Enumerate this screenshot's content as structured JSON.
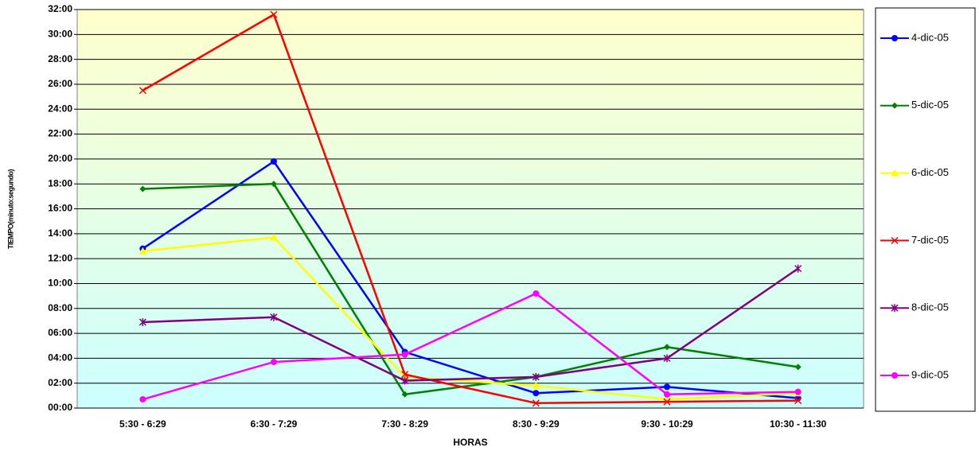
{
  "chart_data": {
    "type": "line",
    "x_label": "HORAS",
    "y_label": "TIEMPO(minuto:segundo)",
    "categories": [
      "5:30 - 6:29",
      "6:30 - 7:29",
      "7:30 - 8:29",
      "8:30 - 9:29",
      "9:30 - 10:29",
      "10:30 - 11:30"
    ],
    "series": [
      {
        "name": "4-dic-05",
        "color": "#0000ff",
        "marker": "circle",
        "values": [
          12.8,
          19.8,
          4.5,
          1.2,
          1.7,
          0.8
        ]
      },
      {
        "name": "5-dic-05",
        "color": "#008000",
        "marker": "diamond",
        "values": [
          17.6,
          18.0,
          1.1,
          2.5,
          4.9,
          3.3
        ]
      },
      {
        "name": "6-dic-05",
        "color": "#ffff00",
        "marker": "triangle",
        "values": [
          12.6,
          13.7,
          2.5,
          1.8,
          0.7,
          1.2
        ]
      },
      {
        "name": "7-dic-05",
        "color": "#ff0000",
        "marker": "x",
        "values": [
          25.5,
          31.6,
          2.7,
          0.4,
          0.5,
          0.6
        ]
      },
      {
        "name": "8-dic-05",
        "color": "#800080",
        "marker": "star",
        "values": [
          6.9,
          7.3,
          2.2,
          2.5,
          4.0,
          11.2
        ]
      },
      {
        "name": "9-dic-05",
        "color": "#ff00ff",
        "marker": "circle",
        "values": [
          0.7,
          3.7,
          4.3,
          9.2,
          1.1,
          1.3
        ]
      }
    ],
    "ylim": [
      0,
      32
    ],
    "yticks": [
      {
        "value": 0,
        "label": "00:00"
      },
      {
        "value": 2,
        "label": "02:00"
      },
      {
        "value": 4,
        "label": "04:00"
      },
      {
        "value": 6,
        "label": "06:00"
      },
      {
        "value": 8,
        "label": "08:00"
      },
      {
        "value": 10,
        "label": "10:00"
      },
      {
        "value": 12,
        "label": "12:00"
      },
      {
        "value": 14,
        "label": "14:00"
      },
      {
        "value": 16,
        "label": "16:00"
      },
      {
        "value": 18,
        "label": "18:00"
      },
      {
        "value": 20,
        "label": "20:00"
      },
      {
        "value": 22,
        "label": "22:00"
      },
      {
        "value": 24,
        "label": "24:00"
      },
      {
        "value": 26,
        "label": "26:00"
      },
      {
        "value": 28,
        "label": "28:00"
      },
      {
        "value": 30,
        "label": "30:00"
      },
      {
        "value": 32,
        "label": "32:00"
      }
    ],
    "grid": true,
    "legend": "right"
  }
}
